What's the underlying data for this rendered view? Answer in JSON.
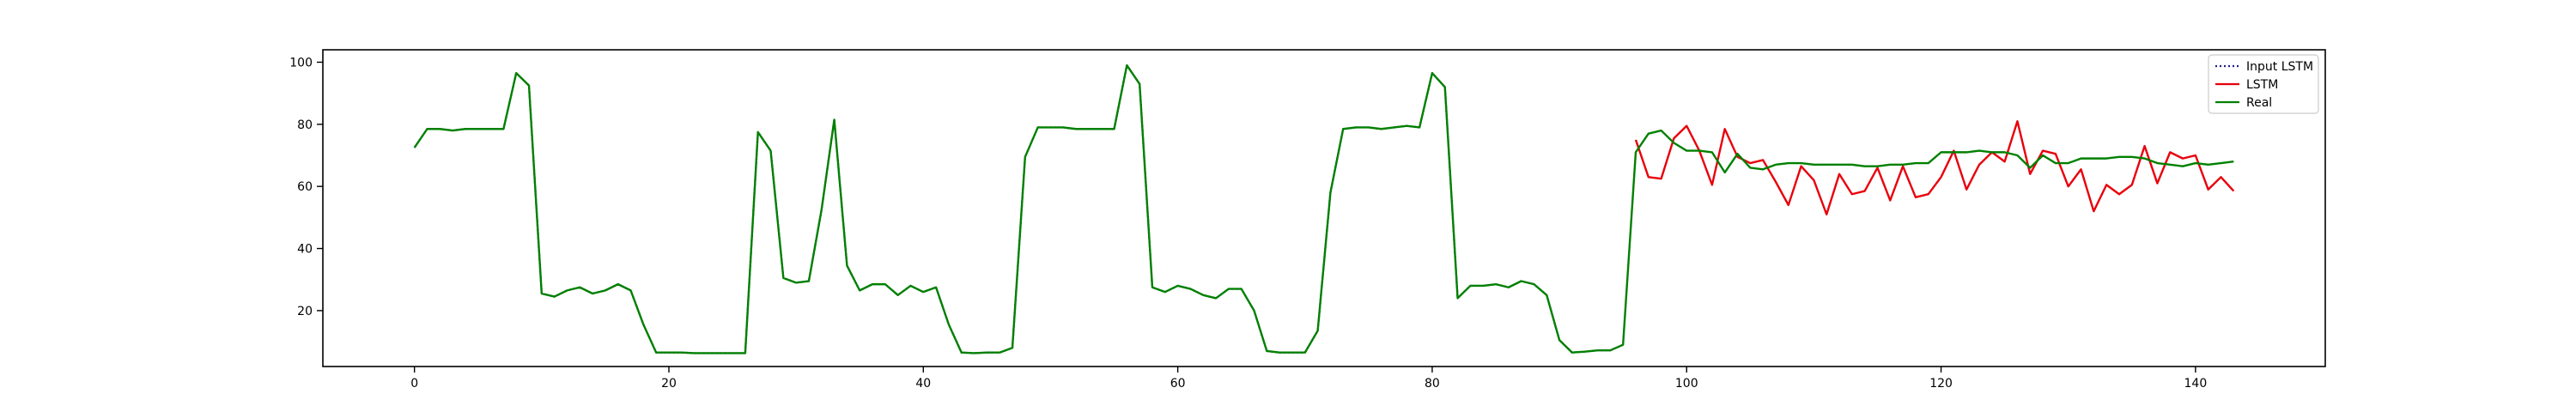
{
  "chart_data": {
    "type": "line",
    "title": "",
    "xlabel": "",
    "ylabel": "",
    "xlim": [
      -7.2,
      150.2
    ],
    "ylim": [
      2,
      104
    ],
    "xticks": [
      0,
      20,
      40,
      60,
      80,
      100,
      120,
      140
    ],
    "yticks": [
      20,
      40,
      60,
      80,
      100
    ],
    "grid": false,
    "legend_position": "top-right",
    "series": [
      {
        "name": "Input LSTM",
        "color": "#1f1f8f",
        "style": "dotted",
        "x_start": 0,
        "values": [
          72.5,
          78.5,
          78.5,
          78.0,
          78.5,
          78.5,
          78.5,
          78.5,
          96.5,
          92.5,
          25.5,
          24.5,
          26.5,
          27.5,
          25.5,
          26.5,
          28.5,
          26.5,
          15.5,
          6.5,
          6.5,
          6.5,
          6.3,
          6.3,
          6.3,
          6.3,
          6.3,
          77.5,
          71.5,
          30.5,
          29.0,
          29.5,
          52.5,
          81.5,
          34.5,
          26.5,
          28.5,
          28.5,
          25.0,
          28.0,
          26.0,
          27.5,
          15.5,
          6.5,
          6.3,
          6.5,
          6.5,
          8.0,
          69.5,
          79.0,
          79.0,
          79.0,
          78.5,
          78.5,
          78.5,
          78.5,
          99.0,
          93.0,
          27.5,
          26.0,
          28.0,
          27.0,
          25.0,
          24.0,
          27.0,
          27.0,
          20.0,
          7.0,
          6.5,
          6.5,
          6.5,
          13.5,
          58.0,
          78.5,
          79.0,
          79.0,
          78.5,
          79.0,
          79.5,
          79.0,
          96.5,
          92.0,
          24.0,
          28.0,
          28.0,
          28.5,
          27.5,
          29.5,
          28.5,
          25.0,
          10.5,
          6.5,
          6.8,
          7.2,
          7.2,
          9.0
        ]
      },
      {
        "name": "LSTM",
        "color": "#e8000b",
        "style": "solid",
        "x_start": 96,
        "values": [
          75.0,
          63.0,
          62.5,
          75.5,
          79.5,
          71.5,
          60.5,
          78.5,
          69.5,
          67.5,
          68.5,
          61.5,
          54.0,
          66.5,
          62.0,
          51.0,
          64.0,
          57.5,
          58.5,
          66.0,
          55.5,
          66.5,
          56.5,
          57.5,
          63.0,
          71.5,
          59.0,
          67.0,
          71.0,
          68.0,
          81.0,
          64.0,
          71.5,
          70.5,
          60.0,
          65.5,
          52.0,
          60.5,
          57.5,
          60.5,
          73.0,
          61.0,
          71.0,
          69.0,
          70.0,
          59.0,
          63.0,
          58.5
        ]
      },
      {
        "name": "Real",
        "color": "#008000",
        "style": "solid",
        "x_start": 0,
        "values": [
          72.5,
          78.5,
          78.5,
          78.0,
          78.5,
          78.5,
          78.5,
          78.5,
          96.5,
          92.5,
          25.5,
          24.5,
          26.5,
          27.5,
          25.5,
          26.5,
          28.5,
          26.5,
          15.5,
          6.5,
          6.5,
          6.5,
          6.3,
          6.3,
          6.3,
          6.3,
          6.3,
          77.5,
          71.5,
          30.5,
          29.0,
          29.5,
          52.5,
          81.5,
          34.5,
          26.5,
          28.5,
          28.5,
          25.0,
          28.0,
          26.0,
          27.5,
          15.5,
          6.5,
          6.3,
          6.5,
          6.5,
          8.0,
          69.5,
          79.0,
          79.0,
          79.0,
          78.5,
          78.5,
          78.5,
          78.5,
          99.0,
          93.0,
          27.5,
          26.0,
          28.0,
          27.0,
          25.0,
          24.0,
          27.0,
          27.0,
          20.0,
          7.0,
          6.5,
          6.5,
          6.5,
          13.5,
          58.0,
          78.5,
          79.0,
          79.0,
          78.5,
          79.0,
          79.5,
          79.0,
          96.5,
          92.0,
          24.0,
          28.0,
          28.0,
          28.5,
          27.5,
          29.5,
          28.5,
          25.0,
          10.5,
          6.5,
          6.8,
          7.2,
          7.2,
          9.0,
          71.0,
          77.0,
          78.0,
          74.0,
          71.5,
          71.5,
          71.0,
          64.5,
          70.5,
          66.0,
          65.5,
          67.0,
          67.5,
          67.5,
          67.0,
          67.0,
          67.0,
          67.0,
          66.5,
          66.5,
          67.0,
          67.0,
          67.5,
          67.5,
          71.0,
          71.0,
          71.0,
          71.5,
          71.0,
          71.0,
          70.0,
          66.0,
          70.0,
          67.5,
          67.5,
          69.0,
          69.0,
          69.0,
          69.5,
          69.5,
          69.0,
          67.5,
          67.0,
          66.5,
          67.5,
          67.0,
          67.5,
          68.0
        ]
      }
    ]
  }
}
